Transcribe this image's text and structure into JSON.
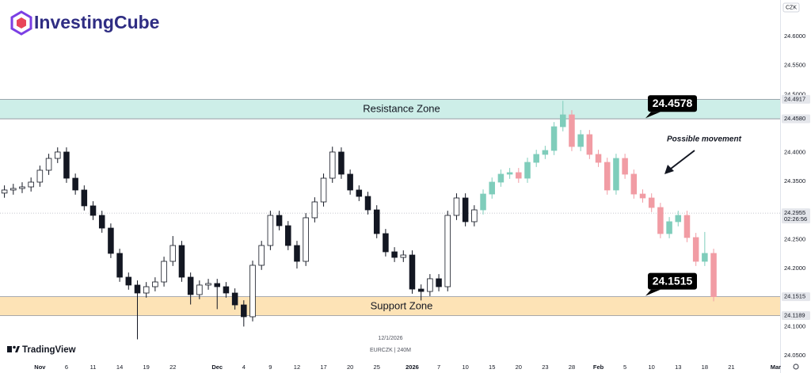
{
  "branding": {
    "logo": "InvestingCube",
    "footer": "TradingView"
  },
  "chart_data": {
    "type": "candlestick",
    "symbol_info": "EURCZK | 240M",
    "currency": "CZK",
    "crosshair_date": "12/1/2026",
    "categories": [
      null,
      null,
      null,
      null,
      "Nov",
      null,
      null,
      "6",
      null,
      null,
      "11",
      null,
      null,
      "14",
      null,
      null,
      "19",
      null,
      null,
      "22",
      null,
      null,
      null,
      null,
      "Dec",
      null,
      null,
      "4",
      null,
      null,
      "9",
      null,
      null,
      "12",
      null,
      null,
      "17",
      null,
      null,
      "20",
      null,
      null,
      "25",
      null,
      null,
      null,
      "2026",
      null,
      null,
      "7",
      null,
      null,
      "10",
      null,
      null,
      "15",
      null,
      null,
      "20",
      null,
      null,
      "23",
      null,
      null,
      "28",
      null,
      null,
      "Feb",
      null,
      null,
      "5",
      null,
      null,
      "10",
      null,
      null,
      "13",
      null,
      null,
      "18",
      null,
      null,
      "21",
      null,
      null,
      null,
      null,
      "Mar"
    ],
    "ylim": [
      24.0377,
      24.6628
    ],
    "yticks": [
      {
        "value": 24.6,
        "label": "24.6000"
      },
      {
        "value": 24.55,
        "label": "24.5500"
      },
      {
        "value": 24.5,
        "label": "24.5000"
      },
      {
        "value": 24.4,
        "label": "24.4000"
      },
      {
        "value": 24.35,
        "label": "24.3500"
      },
      {
        "value": 24.25,
        "label": "24.2500"
      },
      {
        "value": 24.2,
        "label": "24.2000"
      },
      {
        "value": 24.1,
        "label": "24.1000"
      },
      {
        "value": 24.05,
        "label": "24.0500"
      }
    ],
    "series": [
      {
        "up_color": "#ffffff",
        "down_color": "#131722",
        "border_color": "#131722",
        "open": [
          24.33,
          24.3353,
          24.338,
          24.3407,
          24.3489,
          24.3694,
          24.3898,
          24.4008,
          24.3557,
          24.3353,
          24.308,
          24.2916,
          24.2697,
          24.2261,
          24.1851,
          24.1715,
          24.1578,
          24.1687,
          24.1769,
          24.2124,
          24.2397,
          24.1851,
          24.1551,
          24.1715,
          24.1742,
          24.1687,
          24.1578,
          24.1373,
          24.1169,
          24.2056,
          24.2397,
          24.2916,
          24.2738,
          24.2397,
          24.2124,
          24.2875,
          24.3148,
          24.3557,
          24.4008,
          24.3626,
          24.3353,
          24.3243,
          24.3011,
          24.2602,
          24.2288,
          24.2192,
          24.2233,
          24.1646,
          24.1605,
          24.1824,
          24.1687,
          24.2916,
          24.3216,
          24.2807,
          null,
          null,
          null,
          null,
          null,
          null,
          null,
          null,
          null,
          null,
          null,
          null,
          null,
          null,
          null,
          null,
          null,
          null,
          null,
          null,
          null,
          null,
          null,
          null,
          null,
          null,
          null,
          null,
          null,
          null,
          null,
          null,
          null,
          null
        ],
        "high": [
          24.3433,
          24.346,
          24.3487,
          24.3569,
          24.3774,
          24.3978,
          24.4088,
          24.4088,
          24.3637,
          24.3433,
          24.316,
          24.2996,
          24.2777,
          24.2341,
          24.1931,
          24.1795,
          24.1767,
          24.1849,
          24.2204,
          24.256,
          24.2477,
          24.1931,
          24.1795,
          24.1822,
          24.1822,
          24.1767,
          24.1658,
          24.1453,
          24.2136,
          24.2477,
          24.2996,
          24.2996,
          24.2818,
          24.2477,
          24.2955,
          24.3228,
          24.3637,
          24.41,
          24.4088,
          24.3706,
          24.3433,
          24.3323,
          24.3091,
          24.2682,
          24.2368,
          24.2313,
          24.2313,
          24.1726,
          24.1904,
          24.1904,
          24.2996,
          24.3296,
          24.3296,
          24.3091,
          null,
          null,
          null,
          null,
          null,
          null,
          null,
          null,
          null,
          null,
          null,
          null,
          null,
          null,
          null,
          null,
          null,
          null,
          null,
          null,
          null,
          null,
          null,
          null,
          null,
          null,
          null,
          null,
          null,
          null,
          null,
          null,
          null,
          null
        ],
        "low": [
          24.322,
          24.3273,
          24.33,
          24.3327,
          24.3409,
          24.3614,
          24.3818,
          24.3477,
          24.3273,
          24.3,
          24.2836,
          24.2617,
          24.2181,
          24.1771,
          24.1635,
          24.078,
          24.1498,
          24.1607,
          24.1689,
          24.2044,
          24.1771,
          24.138,
          24.1471,
          24.1635,
          24.13,
          24.1498,
          24.1293,
          24.1,
          24.1089,
          24.1976,
          24.2317,
          24.2658,
          24.2317,
          24.2,
          24.2044,
          24.2795,
          24.3068,
          24.3477,
          24.3546,
          24.3273,
          24.3163,
          24.2931,
          24.2522,
          24.2208,
          24.2112,
          24.2112,
          24.1566,
          24.145,
          24.1525,
          24.1607,
          24.1607,
          24.2836,
          24.2727,
          24.2727,
          null,
          null,
          null,
          null,
          null,
          null,
          null,
          null,
          null,
          null,
          null,
          null,
          null,
          null,
          null,
          null,
          null,
          null,
          null,
          null,
          null,
          null,
          null,
          null,
          null,
          null,
          null,
          null,
          null,
          null,
          null,
          null,
          null,
          null
        ],
        "close": [
          24.3353,
          24.338,
          24.3407,
          24.3489,
          24.3694,
          24.3898,
          24.4008,
          24.3557,
          24.3353,
          24.308,
          24.2916,
          24.2697,
          24.2261,
          24.1851,
          24.1715,
          24.1578,
          24.1687,
          24.1769,
          24.2124,
          24.2397,
          24.1851,
          24.1551,
          24.1715,
          24.1742,
          24.1687,
          24.1578,
          24.1373,
          24.1169,
          24.2056,
          24.2397,
          24.2916,
          24.2738,
          24.2397,
          24.2124,
          24.2875,
          24.3148,
          24.3557,
          24.4008,
          24.3626,
          24.3353,
          24.3243,
          24.3011,
          24.2602,
          24.2288,
          24.2192,
          24.2233,
          24.1646,
          24.1605,
          24.1824,
          24.1687,
          24.2916,
          24.3216,
          24.2807,
          24.3011,
          null,
          null,
          null,
          null,
          null,
          null,
          null,
          null,
          null,
          null,
          null,
          null,
          null,
          null,
          null,
          null,
          null,
          null,
          null,
          null,
          null,
          null,
          null,
          null,
          null,
          null,
          null,
          null,
          null,
          null,
          null,
          null,
          null,
          null
        ]
      },
      {
        "up_color": "#7fcdbb",
        "down_color": "#f19ca4",
        "open": [
          null,
          null,
          null,
          null,
          null,
          null,
          null,
          null,
          null,
          null,
          null,
          null,
          null,
          null,
          null,
          null,
          null,
          null,
          null,
          null,
          null,
          null,
          null,
          null,
          null,
          null,
          null,
          null,
          null,
          null,
          null,
          null,
          null,
          null,
          null,
          null,
          null,
          null,
          null,
          null,
          null,
          null,
          null,
          null,
          null,
          null,
          null,
          null,
          null,
          null,
          null,
          null,
          null,
          null,
          24.3011,
          24.3284,
          24.3489,
          24.3626,
          24.3653,
          24.3557,
          24.383,
          24.3967,
          24.4035,
          24.4444,
          24.4649,
          24.4103,
          24.4308,
          24.3967,
          24.383,
          24.3353,
          24.3898,
          24.3626,
          24.3284,
          24.3216,
          24.3052,
          24.2602,
          24.2807,
          24.2916,
          24.2534,
          24.2124,
          24.2261,
          null,
          null,
          null,
          null,
          null,
          null,
          null
        ],
        "high": [
          null,
          null,
          null,
          null,
          null,
          null,
          null,
          null,
          null,
          null,
          null,
          null,
          null,
          null,
          null,
          null,
          null,
          null,
          null,
          null,
          null,
          null,
          null,
          null,
          null,
          null,
          null,
          null,
          null,
          null,
          null,
          null,
          null,
          null,
          null,
          null,
          null,
          null,
          null,
          null,
          null,
          null,
          null,
          null,
          null,
          null,
          null,
          null,
          null,
          null,
          null,
          null,
          null,
          null,
          24.3364,
          24.3569,
          24.3706,
          24.3733,
          24.3733,
          24.391,
          24.4047,
          24.4115,
          24.4524,
          24.489,
          24.4729,
          24.4388,
          24.4388,
          24.4047,
          24.391,
          24.3978,
          24.3978,
          24.3706,
          24.3364,
          24.3296,
          24.3132,
          24.2887,
          24.2996,
          24.2996,
          24.2614,
          24.263,
          24.2341,
          null,
          null,
          null,
          null,
          null,
          null,
          null
        ],
        "low": [
          null,
          null,
          null,
          null,
          null,
          null,
          null,
          null,
          null,
          null,
          null,
          null,
          null,
          null,
          null,
          null,
          null,
          null,
          null,
          null,
          null,
          null,
          null,
          null,
          null,
          null,
          null,
          null,
          null,
          null,
          null,
          null,
          null,
          null,
          null,
          null,
          null,
          null,
          null,
          null,
          null,
          null,
          null,
          null,
          null,
          null,
          null,
          null,
          null,
          null,
          null,
          null,
          null,
          null,
          24.2931,
          24.3204,
          24.3409,
          24.3546,
          24.3477,
          24.3477,
          24.375,
          24.3887,
          24.3955,
          24.4364,
          24.4023,
          24.4023,
          24.3887,
          24.375,
          24.3273,
          24.3273,
          24.3546,
          24.3204,
          24.3136,
          24.2972,
          24.2522,
          24.2522,
          24.2727,
          24.2454,
          24.2044,
          24.2044,
          24.1435,
          null,
          null,
          null,
          null,
          null,
          null,
          null
        ],
        "close": [
          null,
          null,
          null,
          null,
          null,
          null,
          null,
          null,
          null,
          null,
          null,
          null,
          null,
          null,
          null,
          null,
          null,
          null,
          null,
          null,
          null,
          null,
          null,
          null,
          null,
          null,
          null,
          null,
          null,
          null,
          null,
          null,
          null,
          null,
          null,
          null,
          null,
          null,
          null,
          null,
          null,
          null,
          null,
          null,
          null,
          null,
          null,
          null,
          null,
          null,
          null,
          null,
          null,
          null,
          24.3284,
          24.3489,
          24.3626,
          24.3653,
          24.3557,
          24.383,
          24.3967,
          24.4035,
          24.4444,
          24.4649,
          24.4103,
          24.4308,
          24.3967,
          24.383,
          24.3353,
          24.3898,
          24.3626,
          24.3284,
          24.3216,
          24.3052,
          24.2602,
          24.2807,
          24.2916,
          24.2534,
          24.2124,
          24.2261,
          24.1515,
          null,
          null,
          null,
          null,
          null,
          null,
          null
        ]
      }
    ],
    "zones": [
      {
        "name": "Resistance Zone",
        "color": "#cdeee8",
        "range": [
          {
            "value": 24.458,
            "label": "24.4580"
          },
          24.4917
        ]
      },
      {
        "name": "Support Zone",
        "color": "#fde3b6",
        "range": [
          24.1189,
          24.1515
        ]
      }
    ],
    "last_price": {
      "value": 24.2955,
      "countdown": "02:26:56"
    },
    "callouts": [
      24.4578,
      24.1515
    ],
    "annotation": "Possible movement"
  }
}
